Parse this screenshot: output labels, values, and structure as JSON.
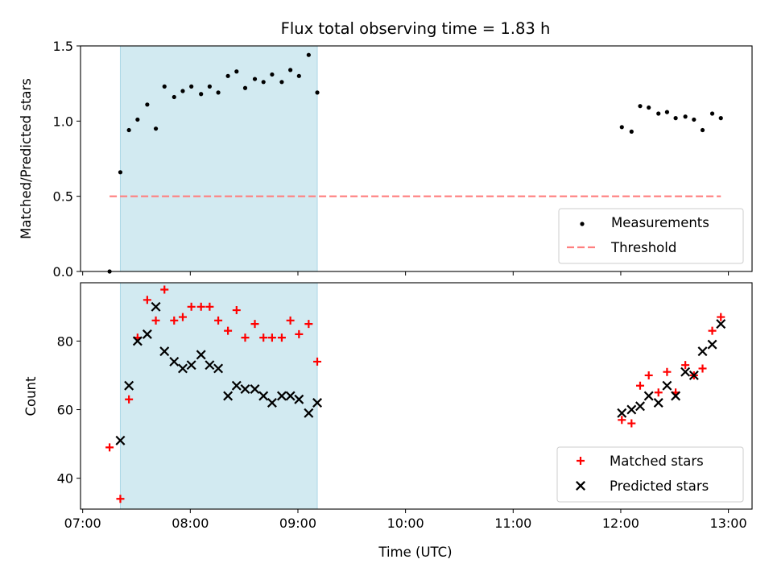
{
  "chart_data": {
    "title": "Flux total observing time = 1.83 h",
    "x_axis": {
      "label": "Time (UTC)",
      "range_hours": [
        6.98,
        13.22
      ],
      "ticks": [
        7,
        8,
        9,
        10,
        11,
        12,
        13
      ],
      "tick_labels": [
        "07:00",
        "08:00",
        "09:00",
        "10:00",
        "11:00",
        "12:00",
        "13:00"
      ]
    },
    "highlight_span_hours": [
      7.35,
      9.18
    ],
    "highlight_color": "#add8e6",
    "panels": [
      {
        "type": "scatter",
        "ylabel": "Matched/Predicted stars",
        "ylim": [
          0.0,
          1.5
        ],
        "yticks": [
          0.0,
          0.5,
          1.0,
          1.5
        ],
        "ytick_labels": [
          "0.0",
          "0.5",
          "1.0",
          "1.5"
        ],
        "legend_position": "lower-right",
        "series": [
          {
            "name": "Measurements",
            "color": "#000000",
            "marker": "dot",
            "x": [
              7.25,
              7.35,
              7.43,
              7.51,
              7.6,
              7.68,
              7.76,
              7.85,
              7.93,
              8.01,
              8.1,
              8.18,
              8.26,
              8.35,
              8.43,
              8.51,
              8.6,
              8.68,
              8.76,
              8.85,
              8.93,
              9.01,
              9.1,
              9.18,
              12.01,
              12.1,
              12.18,
              12.26,
              12.35,
              12.43,
              12.51,
              12.6,
              12.68,
              12.76,
              12.85,
              12.93
            ],
            "y": [
              0.0,
              0.66,
              0.94,
              1.01,
              1.11,
              0.95,
              1.23,
              1.16,
              1.2,
              1.23,
              1.18,
              1.23,
              1.19,
              1.3,
              1.33,
              1.22,
              1.28,
              1.26,
              1.31,
              1.26,
              1.34,
              1.3,
              1.44,
              1.19,
              0.96,
              0.93,
              1.1,
              1.09,
              1.05,
              1.06,
              1.02,
              1.03,
              1.01,
              0.94,
              1.05,
              1.02
            ]
          },
          {
            "name": "Threshold",
            "color": "#ff7f7f",
            "style": "dashed",
            "x": [
              7.25,
              12.93
            ],
            "y": [
              0.5,
              0.5
            ]
          }
        ]
      },
      {
        "type": "scatter",
        "ylabel": "Count",
        "ylim": [
          31,
          97
        ],
        "yticks": [
          40,
          60,
          80
        ],
        "ytick_labels": [
          "40",
          "60",
          "80"
        ],
        "legend_position": "lower-right",
        "series": [
          {
            "name": "Matched stars",
            "color": "#ff0000",
            "marker": "plus",
            "x": [
              7.25,
              7.35,
              7.43,
              7.51,
              7.6,
              7.68,
              7.76,
              7.85,
              7.93,
              8.01,
              8.1,
              8.18,
              8.26,
              8.35,
              8.43,
              8.51,
              8.6,
              8.68,
              8.76,
              8.85,
              8.93,
              9.01,
              9.1,
              9.18,
              12.01,
              12.1,
              12.18,
              12.26,
              12.35,
              12.43,
              12.51,
              12.6,
              12.68,
              12.76,
              12.85,
              12.93
            ],
            "y": [
              49,
              34,
              63,
              81,
              92,
              86,
              95,
              86,
              87,
              90,
              90,
              90,
              86,
              83,
              89,
              81,
              85,
              81,
              81,
              81,
              86,
              82,
              85,
              74,
              57,
              56,
              67,
              70,
              65,
              71,
              65,
              73,
              70,
              72,
              83,
              87
            ]
          },
          {
            "name": "Predicted stars",
            "color": "#000000",
            "marker": "x",
            "x": [
              7.35,
              7.43,
              7.51,
              7.6,
              7.68,
              7.76,
              7.85,
              7.93,
              8.01,
              8.1,
              8.18,
              8.26,
              8.35,
              8.43,
              8.51,
              8.6,
              8.68,
              8.76,
              8.85,
              8.93,
              9.01,
              9.1,
              9.18,
              12.01,
              12.1,
              12.18,
              12.26,
              12.35,
              12.43,
              12.51,
              12.6,
              12.68,
              12.76,
              12.85,
              12.93
            ],
            "y": [
              51,
              67,
              80,
              82,
              90,
              77,
              74,
              72,
              73,
              76,
              73,
              72,
              64,
              67,
              66,
              66,
              64,
              62,
              64,
              64,
              63,
              59,
              62,
              59,
              60,
              61,
              64,
              62,
              67,
              64,
              71,
              70,
              77,
              79,
              85
            ]
          }
        ]
      }
    ]
  }
}
